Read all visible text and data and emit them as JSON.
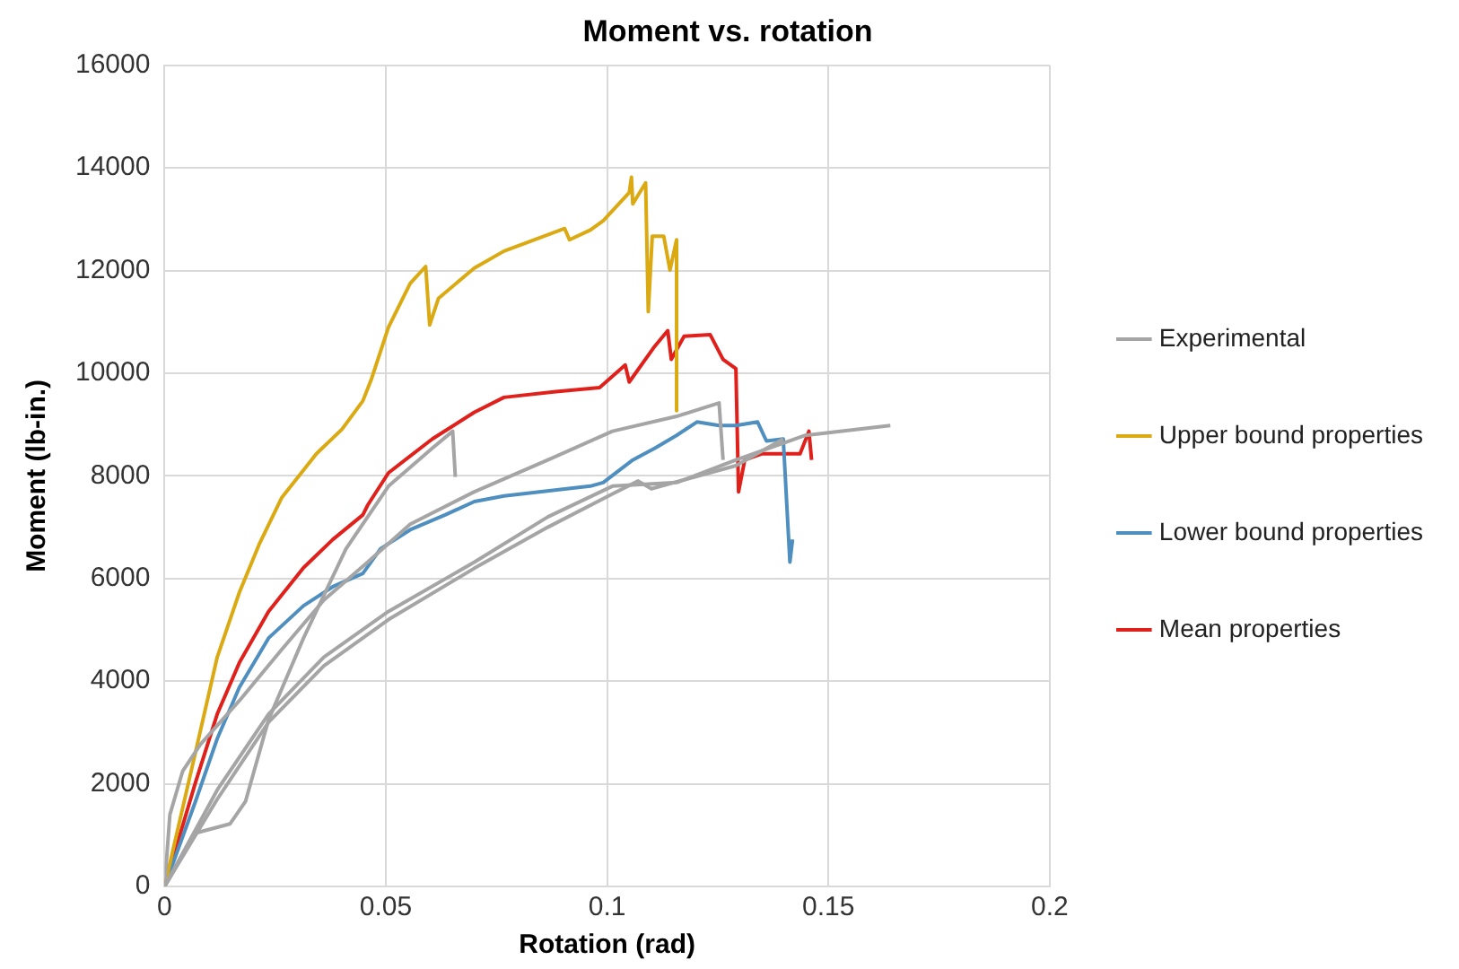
{
  "chart_data": {
    "type": "line",
    "title": "Moment vs. rotation",
    "xlabel": "Rotation (rad)",
    "ylabel": "Moment (lb-in.)",
    "xlim": [
      0,
      0.2
    ],
    "xticks": [
      0,
      0.05,
      0.1,
      0.15,
      0.2
    ],
    "ylim": [
      0,
      16000
    ],
    "yticks": [
      0,
      2000,
      4000,
      6000,
      8000,
      10000,
      12000,
      14000,
      16000
    ],
    "grid": true,
    "legend": "right",
    "marker": "none",
    "line_style": "solid",
    "series": [
      {
        "name": "Experimental",
        "color": "#a5a5a5",
        "x": [
          0,
          0.0012,
          0.0041,
          0.0081,
          0.0169,
          0.0265,
          0.036,
          0.0459,
          0.0555,
          0.07,
          0.0866,
          0.1012,
          0.1157,
          0.1253,
          0.1262
        ],
        "values": [
          0,
          1400,
          2250,
          2770,
          3620,
          4620,
          5580,
          6320,
          7060,
          7690,
          8310,
          8870,
          9160,
          9420,
          8310
        ]
      },
      {
        "color": "#a5a5a5",
        "x": [
          0,
          0.007,
          0.0148,
          0.0183,
          0.0235,
          0.0314,
          0.041,
          0.0506,
          0.0605,
          0.0651,
          0.0657
        ],
        "values": [
          0,
          1040,
          1220,
          1660,
          3250,
          4840,
          6580,
          7800,
          8540,
          8870,
          7980
        ]
      },
      {
        "color": "#a5a5a5",
        "x": [
          0,
          0.0119,
          0.0235,
          0.036,
          0.0506,
          0.07,
          0.0866,
          0.1012,
          0.1157,
          0.1291,
          0.1448,
          0.164
        ],
        "values": [
          0,
          1880,
          3360,
          4470,
          5360,
          6320,
          7200,
          7800,
          7870,
          8310,
          8790,
          8980
        ]
      },
      {
        "color": "#a5a5a5",
        "x": [
          0,
          0.0119,
          0.0235,
          0.036,
          0.0506,
          0.07,
          0.0866,
          0.1012,
          0.107,
          0.11,
          0.1291,
          0.1398
        ],
        "values": [
          0,
          1700,
          3200,
          4300,
          5200,
          6200,
          7000,
          7650,
          7900,
          7750,
          8200,
          8720
        ]
      },
      {
        "name": "Upper bound properties",
        "color": "#dba912",
        "x": [
          0,
          0.007,
          0.0119,
          0.0169,
          0.0215,
          0.0265,
          0.0343,
          0.0401,
          0.0448,
          0.0468,
          0.0506,
          0.0555,
          0.059,
          0.0599,
          0.0619,
          0.07,
          0.0767,
          0.0904,
          0.0915,
          0.0962,
          0.0991,
          0.105,
          0.1055,
          0.1058,
          0.1087,
          0.1093,
          0.1102,
          0.1128,
          0.1142,
          0.1157,
          0.1157
        ],
        "values": [
          0,
          2620,
          4470,
          5730,
          6690,
          7580,
          8430,
          8910,
          9460,
          9900,
          10900,
          11750,
          12080,
          10940,
          11460,
          12050,
          12380,
          12820,
          12600,
          12790,
          12970,
          13520,
          13820,
          13300,
          13710,
          11200,
          12670,
          12670,
          12010,
          12600,
          9270
        ]
      },
      {
        "name": "Lower bound properties",
        "color": "#4f8fc0",
        "x": [
          0,
          0.007,
          0.0119,
          0.0169,
          0.0235,
          0.0314,
          0.038,
          0.0448,
          0.0488,
          0.0555,
          0.0634,
          0.07,
          0.0767,
          0.0962,
          0.0991,
          0.1058,
          0.1108,
          0.1157,
          0.1203,
          0.1253,
          0.1291,
          0.134,
          0.136,
          0.1398,
          0.1413,
          0.1419
        ],
        "values": [
          0,
          1660,
          2880,
          3880,
          4840,
          5470,
          5840,
          6100,
          6580,
          6950,
          7240,
          7500,
          7610,
          7800,
          7870,
          8310,
          8540,
          8790,
          9050,
          8980,
          8980,
          9050,
          8680,
          8720,
          6320,
          6760
        ]
      },
      {
        "name": "Mean properties",
        "color": "#e0201b",
        "x": [
          0,
          0.007,
          0.0119,
          0.0169,
          0.0235,
          0.0314,
          0.038,
          0.0448,
          0.0459,
          0.0506,
          0.0605,
          0.07,
          0.0767,
          0.0884,
          0.0983,
          0.1041,
          0.105,
          0.1108,
          0.1137,
          0.1145,
          0.1174,
          0.1233,
          0.1262,
          0.1291,
          0.1297,
          0.1311,
          0.1349,
          0.1436,
          0.1456,
          0.1462
        ],
        "values": [
          0,
          2030,
          3360,
          4360,
          5360,
          6210,
          6760,
          7240,
          7430,
          8060,
          8720,
          9240,
          9530,
          9640,
          9720,
          10160,
          9830,
          10530,
          10830,
          10270,
          10720,
          10750,
          10270,
          10090,
          7690,
          8310,
          8430,
          8430,
          8870,
          8310
        ]
      }
    ]
  }
}
